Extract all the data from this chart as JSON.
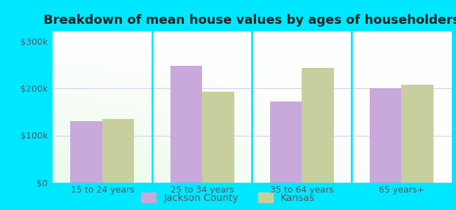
{
  "title": "Breakdown of mean house values by ages of householders",
  "categories": [
    "15 to 24 years",
    "25 to 34 years",
    "35 to 64 years",
    "65 years+"
  ],
  "jackson_county": [
    130000,
    248000,
    172000,
    200000
  ],
  "kansas": [
    135000,
    193000,
    243000,
    207000
  ],
  "jackson_color": "#c9a8dc",
  "kansas_color": "#c8cf9e",
  "background_outer": "#00e8ff",
  "ylim": [
    0,
    320000
  ],
  "yticks": [
    0,
    100000,
    200000,
    300000
  ],
  "ytick_labels": [
    "$0",
    "$100k",
    "$200k",
    "$300k"
  ],
  "legend_jackson": "Jackson County",
  "legend_kansas": "Kansas",
  "bar_width": 0.32,
  "title_fontsize": 13,
  "tick_fontsize": 9,
  "legend_fontsize": 10,
  "grid_color": "#d8c8e8",
  "separator_color": "#00e8ff"
}
